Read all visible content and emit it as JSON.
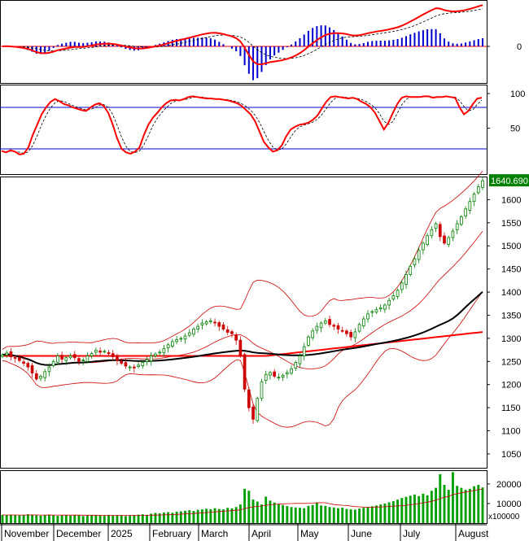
{
  "chart_data": [
    {
      "type": "bar",
      "panel": "macd",
      "y_tick_labels": [
        "0"
      ],
      "ylim": [
        -1,
        1
      ],
      "series": [
        {
          "name": "",
          "color": "#ff0000"
        },
        {
          "name": "",
          "color": "#000000"
        },
        {
          "name": "",
          "color": "#0000cc"
        }
      ]
    },
    {
      "type": "line",
      "panel": "stochastic",
      "ylim": [
        0,
        100
      ],
      "y_tick_labels": [
        "100",
        "50"
      ],
      "reference_lines": [
        80,
        20
      ],
      "series": [
        {
          "name": "",
          "color": "#ff0000",
          "values": [
            17,
            15,
            18,
            16,
            12,
            13,
            22,
            40,
            55,
            70,
            80,
            88,
            92,
            89,
            85,
            83,
            80,
            78,
            76,
            75,
            80,
            84,
            86,
            82,
            72,
            55,
            35,
            20,
            15,
            13,
            16,
            22,
            40,
            55,
            65,
            72,
            80,
            86,
            90,
            91,
            90,
            92,
            95,
            96,
            95,
            94,
            93,
            93,
            92,
            92,
            91,
            90,
            88,
            86,
            82,
            76,
            70,
            60,
            45,
            30,
            22,
            16,
            18,
            25,
            38,
            48,
            52,
            55,
            56,
            58,
            62,
            68,
            78,
            88,
            95,
            96,
            95,
            94,
            93,
            94,
            92,
            88,
            85,
            80,
            72,
            60,
            48,
            58,
            72,
            85,
            94,
            96,
            95,
            95,
            95,
            96,
            96,
            94,
            95,
            95,
            96,
            95,
            94,
            80,
            70,
            75,
            85,
            93,
            94
          ]
        },
        {
          "name": "",
          "color": "#000000",
          "dashed": true
        }
      ]
    },
    {
      "type": "candlestick",
      "panel": "price",
      "ylim": [
        1020,
        1650
      ],
      "y_ticks": [
        1050,
        1100,
        1150,
        1200,
        1250,
        1300,
        1350,
        1400,
        1450,
        1500,
        1550,
        1600
      ],
      "x_tick_labels": [
        "November",
        "December",
        "2025",
        "February",
        "March",
        "April",
        "May",
        "June",
        "July",
        "August"
      ],
      "last_value_label": "1640.690",
      "closes": [
        1264,
        1268,
        1260,
        1257,
        1252,
        1246,
        1238,
        1225,
        1212,
        1218,
        1228,
        1238,
        1250,
        1262,
        1255,
        1258,
        1262,
        1258,
        1250,
        1253,
        1262,
        1267,
        1274,
        1270,
        1272,
        1267,
        1260,
        1252,
        1246,
        1240,
        1238,
        1236,
        1242,
        1248,
        1254,
        1262,
        1266,
        1270,
        1278,
        1286,
        1293,
        1297,
        1300,
        1305,
        1312,
        1320,
        1326,
        1333,
        1336,
        1338,
        1334,
        1326,
        1320,
        1313,
        1310,
        1296,
        1262,
        1190,
        1150,
        1125,
        1170,
        1206,
        1222,
        1226,
        1218,
        1216,
        1220,
        1226,
        1234,
        1248,
        1262,
        1282,
        1303,
        1316,
        1326,
        1333,
        1338,
        1330,
        1326,
        1320,
        1316,
        1310,
        1303,
        1314,
        1330,
        1342,
        1353,
        1358,
        1362,
        1366,
        1372,
        1382,
        1392,
        1404,
        1420,
        1438,
        1456,
        1472,
        1490,
        1506,
        1522,
        1535,
        1548,
        1520,
        1506,
        1518,
        1532,
        1548,
        1563,
        1580,
        1596,
        1612,
        1628,
        1641
      ],
      "ma_series": [
        {
          "name": "",
          "color": "#ff0000"
        },
        {
          "name": "",
          "color": "#000000"
        },
        {
          "name": "",
          "color": "#cc0000"
        }
      ]
    },
    {
      "type": "bar",
      "panel": "volume",
      "y_ticks": [
        10000,
        20000
      ],
      "unit_label": "x100000",
      "ylim": [
        0,
        27000
      ],
      "values": [
        4200,
        4000,
        4300,
        4100,
        3900,
        4200,
        4500,
        4300,
        4000,
        3800,
        4100,
        4300,
        4000,
        3700,
        3900,
        4100,
        3800,
        4200,
        3900,
        3600,
        3800,
        4000,
        4100,
        3900,
        3700,
        4200,
        3800,
        4000,
        3900,
        3600,
        3800,
        4100,
        4300,
        4500,
        4200,
        4800,
        5200,
        5000,
        5400,
        5600,
        5300,
        5800,
        6000,
        6300,
        6600,
        6200,
        6800,
        7000,
        7300,
        7100,
        7600,
        7200,
        7000,
        7800,
        7500,
        8200,
        9500,
        17500,
        16500,
        12000,
        11000,
        9500,
        13500,
        11500,
        10500,
        9800,
        9200,
        8700,
        8200,
        8000,
        7800,
        7600,
        8800,
        9200,
        10500,
        9000,
        8800,
        8200,
        8000,
        7600,
        7900,
        7200,
        7000,
        6900,
        7400,
        7800,
        8200,
        8600,
        9000,
        9500,
        10000,
        10600,
        11200,
        12000,
        12800,
        13400,
        14000,
        14600,
        13800,
        15000,
        14200,
        16500,
        18000,
        25000,
        19500,
        17000,
        26000,
        19000,
        18000,
        17000,
        17500,
        18800,
        19500,
        18200
      ]
    }
  ]
}
